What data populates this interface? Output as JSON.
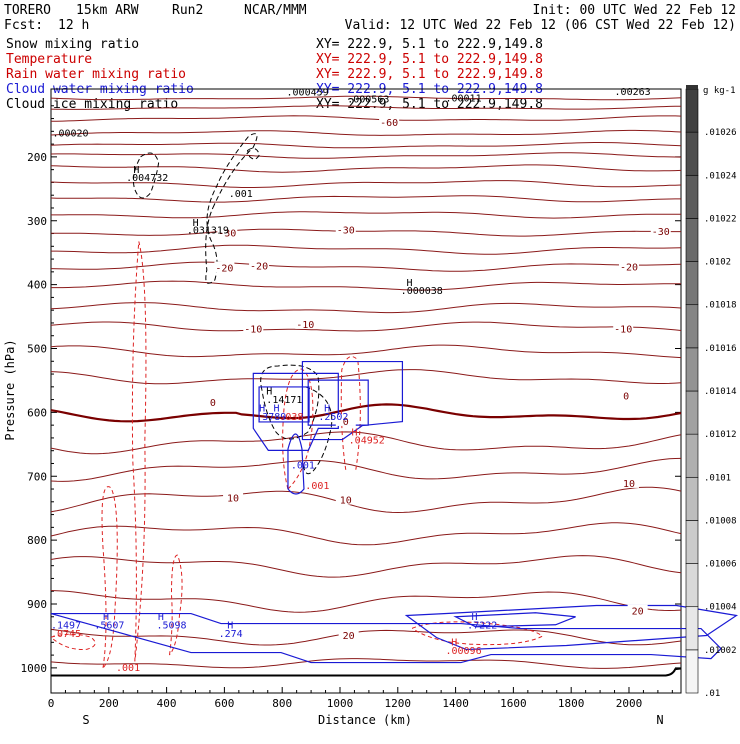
{
  "header": {
    "left": [
      "TORERO",
      "15km ARW",
      "Run2",
      "NCAR/MMM"
    ],
    "init": "Init: 00 UTC Wed 22 Feb 12",
    "fcst_label": "Fcst:",
    "fcst_value": "12 h",
    "valid": "Valid: 12 UTC Wed 22 Feb 12 (06 CST Wed 22 Feb 12)"
  },
  "fields": [
    {
      "label": "Snow mixing ratio",
      "xy": "XY= 222.9,  5.1 to 222.9,149.8",
      "color": "#000000"
    },
    {
      "label": "Temperature",
      "xy": "XY= 222.9,  5.1 to 222.9,149.8",
      "color": "#cc0000"
    },
    {
      "label": "Rain water mixing ratio",
      "xy": "XY= 222.9,  5.1 to 222.9,149.8",
      "color": "#cc0000"
    },
    {
      "label": "Cloud water mixing ratio",
      "xy": "XY= 222.9,  5.1 to 222.9,149.8",
      "color": "#1a1ad4"
    },
    {
      "label": "Cloud ice mixing ratio",
      "xy": "XY= 222.9,  5.1 to 222.9,149.8",
      "color": "#000000"
    }
  ],
  "colors": {
    "temperature": "#8b1a1a",
    "freezing": "#7a0000",
    "rain": "#dd2222",
    "cloud_water": "#1a1ad4",
    "snow": "#000000",
    "ground": "#000000"
  },
  "chart_data": {
    "type": "cross-section",
    "xlabel": "Distance (km)",
    "ylabel": "Pressure (hPa)",
    "xlim": [
      0,
      2180
    ],
    "ylim": [
      1020,
      100
    ],
    "x_ticks": [
      "0",
      "200",
      "400",
      "600",
      "800",
      "1000",
      "1200",
      "1400",
      "1600",
      "1800",
      "2000"
    ],
    "y_ticks": [
      "200",
      "300",
      "400",
      "500",
      "600",
      "700",
      "800",
      "900",
      "1000"
    ],
    "x_end_labels": {
      "left": "S",
      "right": "N"
    },
    "temperature_contours_C": [
      -60,
      -50,
      -40,
      -30,
      -20,
      -10,
      0,
      10,
      20
    ],
    "temperature_contour_labels": [
      {
        "text": "-60",
        "x": 1170,
        "p": 147
      },
      {
        "text": "-30",
        "x": 610,
        "p": 320
      },
      {
        "text": "-30",
        "x": 1020,
        "p": 315
      },
      {
        "text": "-30",
        "x": 2110,
        "p": 318
      },
      {
        "text": "-20",
        "x": 600,
        "p": 375
      },
      {
        "text": "-20",
        "x": 720,
        "p": 372
      },
      {
        "text": "-20",
        "x": 2000,
        "p": 373
      },
      {
        "text": "-10",
        "x": 700,
        "p": 470
      },
      {
        "text": "-10",
        "x": 880,
        "p": 463
      },
      {
        "text": "-10",
        "x": 1980,
        "p": 470
      },
      {
        "text": "0",
        "x": 560,
        "p": 585
      },
      {
        "text": "0",
        "x": 1020,
        "p": 615
      },
      {
        "text": "0",
        "x": 1990,
        "p": 575
      },
      {
        "text": "10",
        "x": 630,
        "p": 735
      },
      {
        "text": "10",
        "x": 1020,
        "p": 738
      },
      {
        "text": "10",
        "x": 2000,
        "p": 712
      },
      {
        "text": "20",
        "x": 1030,
        "p": 950
      },
      {
        "text": "20",
        "x": 2030,
        "p": 912
      }
    ],
    "extrema_labels": [
      {
        "text": ".00020",
        "x": 5,
        "p": 168,
        "field": "snow"
      },
      {
        "text": "H",
        "x": 285,
        "p": 225,
        "field": "snow"
      },
      {
        "text": ".004732",
        "x": 260,
        "p": 238,
        "field": "snow"
      },
      {
        "text": ".001",
        "x": 615,
        "p": 263,
        "field": "snow"
      },
      {
        "text": "H",
        "x": 490,
        "p": 308,
        "field": "snow"
      },
      {
        "text": ".031319",
        "x": 470,
        "p": 320,
        "field": "snow"
      },
      {
        "text": "H",
        "x": 1230,
        "p": 402,
        "field": "snow"
      },
      {
        "text": ".000038",
        "x": 1210,
        "p": 415,
        "field": "snow"
      },
      {
        "text": ".000459",
        "x": 815,
        "p": 104,
        "field": "snow"
      },
      {
        "text": ".000563",
        "x": 1025,
        "p": 115,
        "field": "snow"
      },
      {
        "text": ".00011",
        "x": 1365,
        "p": 113,
        "field": "snow"
      },
      {
        "text": ".00263",
        "x": 1950,
        "p": 103,
        "field": "snow"
      },
      {
        "text": "H",
        "x": 745,
        "p": 572,
        "field": "snow"
      },
      {
        "text": ".14171",
        "x": 745,
        "p": 585,
        "field": "snow"
      },
      {
        "text": "H",
        "x": 720,
        "p": 599,
        "field": "cloud_water"
      },
      {
        "text": "H",
        "x": 770,
        "p": 599,
        "field": "cloud_water"
      },
      {
        "text": ".3789",
        "x": 710,
        "p": 612,
        "field": "cloud_water"
      },
      {
        "text": ".038",
        "x": 790,
        "p": 612,
        "field": "rain"
      },
      {
        "text": "H",
        "x": 945,
        "p": 599,
        "field": "cloud_water"
      },
      {
        "text": ".2502",
        "x": 925,
        "p": 612,
        "field": "cloud_water"
      },
      {
        "text": "H",
        "x": 1040,
        "p": 636,
        "field": "rain"
      },
      {
        "text": ".04952",
        "x": 1030,
        "p": 649,
        "field": "rain"
      },
      {
        "text": ".001",
        "x": 830,
        "p": 688,
        "field": "cloud_water"
      },
      {
        "text": ".001",
        "x": 880,
        "p": 720,
        "field": "rain"
      },
      {
        "text": ".1497",
        "x": 0,
        "p": 938,
        "field": "cloud_water"
      },
      {
        "text": ".0745",
        "x": 0,
        "p": 952,
        "field": "rain"
      },
      {
        "text": "H",
        "x": 180,
        "p": 925,
        "field": "cloud_water"
      },
      {
        "text": ".5607",
        "x": 150,
        "p": 938,
        "field": "cloud_water"
      },
      {
        "text": "H",
        "x": 370,
        "p": 925,
        "field": "cloud_water"
      },
      {
        "text": ".5098",
        "x": 365,
        "p": 938,
        "field": "cloud_water"
      },
      {
        "text": "H",
        "x": 610,
        "p": 938,
        "field": "cloud_water"
      },
      {
        "text": ".274",
        "x": 580,
        "p": 952,
        "field": "cloud_water"
      },
      {
        "text": "H",
        "x": 1455,
        "p": 925,
        "field": "cloud_water"
      },
      {
        "text": ".7222",
        "x": 1440,
        "p": 938,
        "field": "cloud_water"
      },
      {
        "text": "H",
        "x": 1385,
        "p": 965,
        "field": "rain"
      },
      {
        "text": ".00096",
        "x": 1365,
        "p": 978,
        "field": "rain"
      },
      {
        "text": ".001",
        "x": 225,
        "p": 1005,
        "field": "rain"
      }
    ],
    "colorbar": {
      "unit": "g kg-1",
      "labels": [
        ".01",
        ".01002",
        ".01004",
        ".01006",
        ".01008",
        ".0101",
        ".01012",
        ".01014",
        ".01016",
        ".01018",
        ".0102",
        ".01022",
        ".01024",
        ".01026"
      ],
      "shade_start": 0.96,
      "shade_end": 0.25
    }
  }
}
